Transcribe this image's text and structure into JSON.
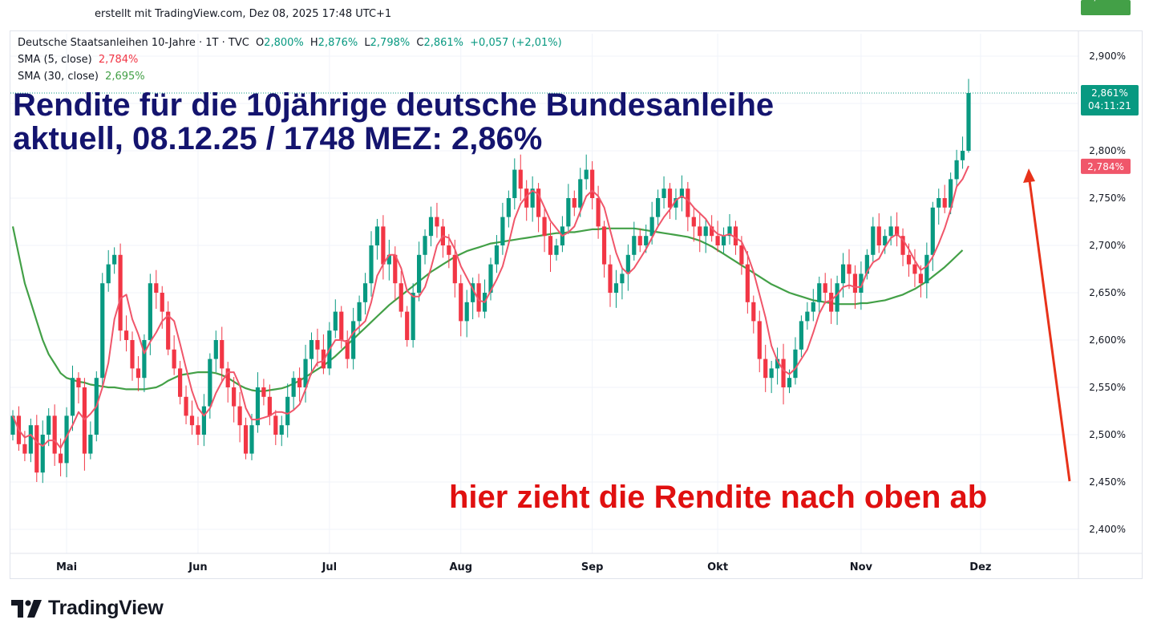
{
  "header": {
    "created_line": "erstellt mit TradingView.com, Dez 08, 2025 17:48 UTC+1"
  },
  "legend": {
    "symbol": "Deutsche Staatsanleihen 10-Jahre · 1T · TVC",
    "o_label": "O",
    "o_value": "2,800%",
    "h_label": "H",
    "h_value": "2,876%",
    "l_label": "L",
    "l_value": "2,798%",
    "c_label": "C",
    "c_value": "2,861%",
    "change": "+0,057 (+2,01%)",
    "sma5_label": "SMA (5, close)",
    "sma5_value": "2,784%",
    "sma30_label": "SMA (30, close)",
    "sma30_value": "2,695%"
  },
  "headline": {
    "line1": "Rendite für die 10jährige deutsche Bundesanleihe",
    "line2": "aktuell, 08.12.25 / 1748 MEZ: 2,86%"
  },
  "annotation": "hier zieht die Rendite nach oben ab",
  "brand": "TradingView",
  "colors": {
    "up": "#089981",
    "down": "#f23645",
    "sma5": "#f0566a",
    "sma30": "#43a047",
    "headline": "#14146e",
    "annotation": "#e01010",
    "arrow": "#e8321a"
  },
  "chart_data": {
    "type": "candlestick",
    "unit": "%",
    "ylim": [
      2.38,
      2.92
    ],
    "y_ticks": [
      "2,900%",
      "2,850%",
      "2,800%",
      "2,750%",
      "2,700%",
      "2,650%",
      "2,600%",
      "2,550%",
      "2,500%",
      "2,450%",
      "2,400%"
    ],
    "x_ticks": [
      "Mai",
      "Jun",
      "Jul",
      "Aug",
      "Sep",
      "Okt",
      "Nov",
      "Dez"
    ],
    "x_tick_index": [
      9,
      31,
      53,
      75,
      97,
      118,
      142,
      162
    ],
    "price_labels": {
      "last": "2,861%",
      "countdown": "04:11:21",
      "sma5": "2,784%",
      "sma30": "2,695%"
    },
    "grid": true,
    "closes": [
      2.52,
      2.49,
      2.48,
      2.51,
      2.46,
      2.5,
      2.52,
      2.48,
      2.47,
      2.52,
      2.56,
      2.55,
      2.48,
      2.5,
      2.56,
      2.66,
      2.68,
      2.69,
      2.61,
      2.6,
      2.57,
      2.56,
      2.6,
      2.66,
      2.65,
      2.63,
      2.59,
      2.57,
      2.54,
      2.52,
      2.51,
      2.5,
      2.53,
      2.58,
      2.6,
      2.57,
      2.55,
      2.53,
      2.51,
      2.48,
      2.51,
      2.55,
      2.54,
      2.52,
      2.5,
      2.51,
      2.54,
      2.56,
      2.55,
      2.58,
      2.6,
      2.59,
      2.57,
      2.61,
      2.63,
      2.6,
      2.58,
      2.62,
      2.64,
      2.66,
      2.7,
      2.72,
      2.68,
      2.69,
      2.66,
      2.63,
      2.6,
      2.65,
      2.69,
      2.71,
      2.73,
      2.72,
      2.7,
      2.69,
      2.66,
      2.62,
      2.64,
      2.66,
      2.63,
      2.65,
      2.68,
      2.7,
      2.73,
      2.75,
      2.78,
      2.76,
      2.74,
      2.76,
      2.73,
      2.71,
      2.69,
      2.7,
      2.72,
      2.75,
      2.74,
      2.77,
      2.78,
      2.75,
      2.72,
      2.68,
      2.65,
      2.66,
      2.67,
      2.69,
      2.71,
      2.7,
      2.71,
      2.73,
      2.75,
      2.76,
      2.74,
      2.75,
      2.76,
      2.73,
      2.72,
      2.71,
      2.72,
      2.71,
      2.7,
      2.71,
      2.72,
      2.7,
      2.68,
      2.64,
      2.62,
      2.58,
      2.56,
      2.57,
      2.58,
      2.55,
      2.56,
      2.59,
      2.62,
      2.63,
      2.64,
      2.66,
      2.65,
      2.63,
      2.66,
      2.68,
      2.67,
      2.65,
      2.67,
      2.69,
      2.72,
      2.7,
      2.71,
      2.72,
      2.71,
      2.69,
      2.68,
      2.67,
      2.66,
      2.69,
      2.74,
      2.75,
      2.74,
      2.77,
      2.79,
      2.8,
      2.861
    ],
    "series": [
      {
        "name": "SMA (5, close)",
        "values": [
          2.52,
          2.505,
          2.497,
          2.5,
          2.492,
          2.488,
          2.494,
          2.494,
          2.486,
          2.498,
          2.51,
          2.524,
          2.516,
          2.522,
          2.53,
          2.55,
          2.576,
          2.622,
          2.644,
          2.648,
          2.622,
          2.606,
          2.586,
          2.598,
          2.608,
          2.62,
          2.626,
          2.62,
          2.596,
          2.57,
          2.546,
          2.528,
          2.52,
          2.528,
          2.544,
          2.556,
          2.566,
          2.566,
          2.552,
          2.528,
          2.516,
          2.516,
          2.518,
          2.52,
          2.524,
          2.524,
          2.522,
          2.526,
          2.532,
          2.548,
          2.566,
          2.576,
          2.578,
          2.59,
          2.6,
          2.6,
          2.598,
          2.608,
          2.614,
          2.62,
          2.64,
          2.668,
          2.68,
          2.69,
          2.69,
          2.676,
          2.652,
          2.646,
          2.646,
          2.656,
          2.676,
          2.7,
          2.71,
          2.708,
          2.696,
          2.678,
          2.666,
          2.654,
          2.642,
          2.64,
          2.652,
          2.664,
          2.678,
          2.702,
          2.728,
          2.744,
          2.752,
          2.758,
          2.754,
          2.74,
          2.726,
          2.718,
          2.71,
          2.714,
          2.72,
          2.736,
          2.752,
          2.758,
          2.752,
          2.74,
          2.716,
          2.692,
          2.676,
          2.67,
          2.676,
          2.686,
          2.696,
          2.708,
          2.72,
          2.73,
          2.738,
          2.748,
          2.752,
          2.748,
          2.74,
          2.734,
          2.728,
          2.718,
          2.712,
          2.71,
          2.712,
          2.708,
          2.704,
          2.69,
          2.672,
          2.648,
          2.624,
          2.594,
          2.578,
          2.568,
          2.564,
          2.57,
          2.58,
          2.59,
          2.608,
          2.628,
          2.64,
          2.642,
          2.648,
          2.656,
          2.658,
          2.656,
          2.656,
          2.672,
          2.682,
          2.686,
          2.698,
          2.708,
          2.712,
          2.706,
          2.696,
          2.684,
          2.674,
          2.678,
          2.688,
          2.702,
          2.718,
          2.738,
          2.762,
          2.77,
          2.784
        ]
      },
      {
        "name": "SMA (30, close)",
        "values": [
          2.72,
          2.69,
          2.66,
          2.64,
          2.62,
          2.6,
          2.585,
          2.575,
          2.565,
          2.56,
          2.558,
          2.556,
          2.555,
          2.553,
          2.552,
          2.551,
          2.55,
          2.55,
          2.549,
          2.548,
          2.548,
          2.548,
          2.548,
          2.549,
          2.55,
          2.553,
          2.557,
          2.56,
          2.563,
          2.564,
          2.565,
          2.566,
          2.566,
          2.566,
          2.565,
          2.563,
          2.56,
          2.556,
          2.552,
          2.549,
          2.547,
          2.546,
          2.546,
          2.547,
          2.548,
          2.549,
          2.551,
          2.554,
          2.557,
          2.561,
          2.565,
          2.569,
          2.573,
          2.578,
          2.583,
          2.589,
          2.595,
          2.601,
          2.607,
          2.613,
          2.619,
          2.625,
          2.631,
          2.637,
          2.642,
          2.647,
          2.652,
          2.657,
          2.662,
          2.667,
          2.672,
          2.676,
          2.68,
          2.684,
          2.688,
          2.691,
          2.694,
          2.696,
          2.698,
          2.7,
          2.702,
          2.703,
          2.704,
          2.705,
          2.706,
          2.707,
          2.708,
          2.709,
          2.71,
          2.711,
          2.712,
          2.713,
          2.713,
          2.714,
          2.714,
          2.715,
          2.716,
          2.717,
          2.717,
          2.718,
          2.718,
          2.718,
          2.718,
          2.718,
          2.718,
          2.717,
          2.716,
          2.715,
          2.714,
          2.713,
          2.712,
          2.711,
          2.71,
          2.709,
          2.707,
          2.705,
          2.702,
          2.699,
          2.695,
          2.691,
          2.687,
          2.683,
          2.679,
          2.675,
          2.671,
          2.667,
          2.663,
          2.659,
          2.656,
          2.653,
          2.65,
          2.648,
          2.646,
          2.644,
          2.642,
          2.641,
          2.64,
          2.639,
          2.638,
          2.638,
          2.638,
          2.638,
          2.639,
          2.639,
          2.64,
          2.641,
          2.642,
          2.644,
          2.646,
          2.648,
          2.651,
          2.654,
          2.658,
          2.662,
          2.667,
          2.672,
          2.677,
          2.683,
          2.689,
          2.695
        ]
      }
    ]
  }
}
